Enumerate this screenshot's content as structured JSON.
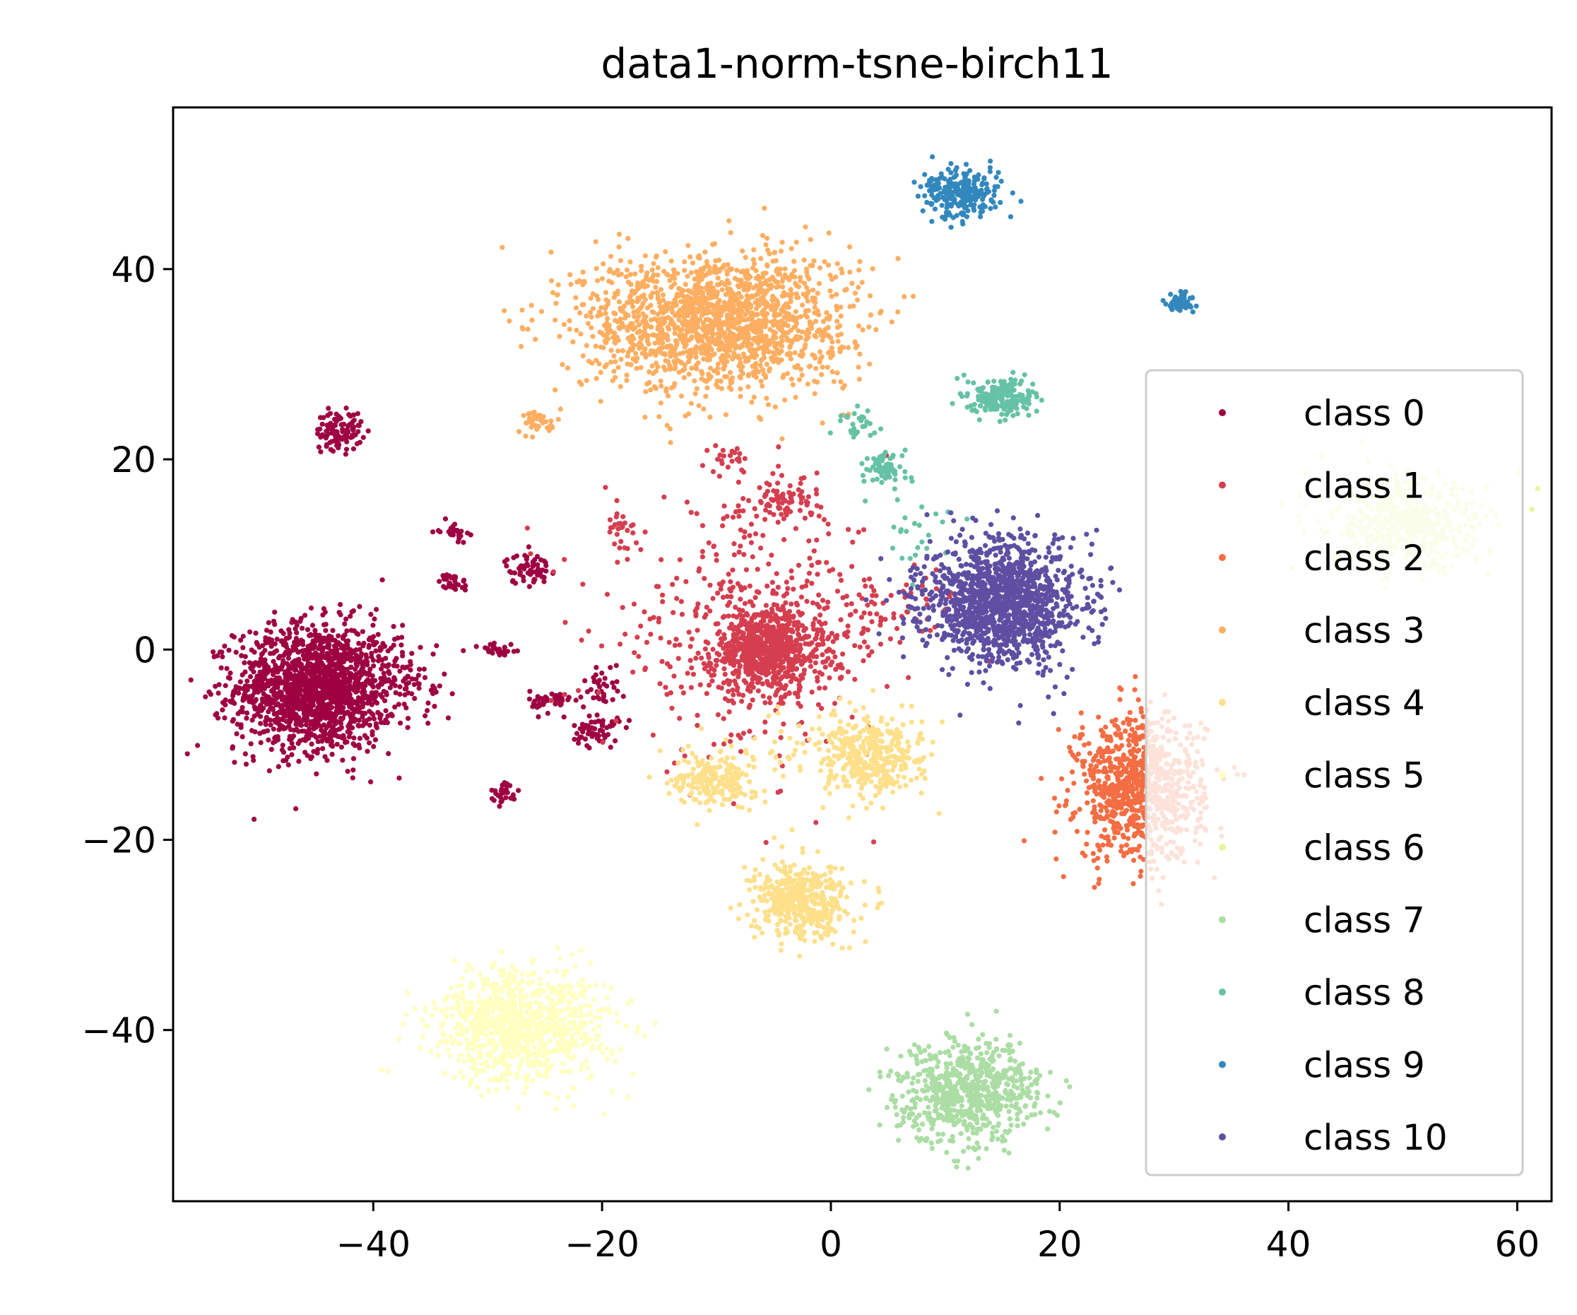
{
  "chart_data": {
    "type": "scatter",
    "title": "data1-norm-tsne-birch11",
    "xlabel": "",
    "ylabel": "",
    "xlim": [
      -57.5,
      63
    ],
    "ylim": [
      -58,
      57
    ],
    "xticks": [
      -40,
      -20,
      0,
      20,
      40,
      60
    ],
    "yticks": [
      -40,
      -20,
      0,
      20,
      40
    ],
    "xtick_labels": [
      "−40",
      "−20",
      "0",
      "20",
      "40",
      "60"
    ],
    "ytick_labels": [
      "−40",
      "−20",
      "0",
      "20",
      "40"
    ],
    "grid": false,
    "legend_position": "center-right",
    "series": [
      {
        "name": "class 0",
        "color": "#9e0142",
        "clusters": [
          {
            "x": -45,
            "y": -4,
            "sx": 3.5,
            "sy": 3.3,
            "n": 1600
          },
          {
            "x": -43,
            "y": 23,
            "sx": 1.0,
            "sy": 1.0,
            "n": 110
          },
          {
            "x": -33,
            "y": 12.5,
            "sx": 0.6,
            "sy": 0.5,
            "n": 30
          },
          {
            "x": -33,
            "y": 7,
            "sx": 0.6,
            "sy": 0.5,
            "n": 30
          },
          {
            "x": -26.5,
            "y": 8.5,
            "sx": 1.0,
            "sy": 0.8,
            "n": 60
          },
          {
            "x": -29,
            "y": 0,
            "sx": 1.0,
            "sy": 0.5,
            "n": 25
          },
          {
            "x": -24.5,
            "y": -5.5,
            "sx": 0.9,
            "sy": 0.6,
            "n": 45
          },
          {
            "x": -20.5,
            "y": -8.5,
            "sx": 1.0,
            "sy": 0.9,
            "n": 60
          },
          {
            "x": -20,
            "y": -4,
            "sx": 0.8,
            "sy": 1.2,
            "n": 35
          },
          {
            "x": -28.5,
            "y": -15,
            "sx": 0.6,
            "sy": 0.6,
            "n": 30
          },
          {
            "x": -37,
            "y": -3,
            "sx": 2.0,
            "sy": 2.5,
            "n": 50
          }
        ]
      },
      {
        "name": "class 1",
        "color": "#d53e4f",
        "clusters": [
          {
            "x": -5.5,
            "y": 0,
            "sx": 2.5,
            "sy": 2.3,
            "n": 700
          },
          {
            "x": -7,
            "y": 2,
            "sx": 6.5,
            "sy": 6.5,
            "n": 420
          },
          {
            "x": -4,
            "y": 15.5,
            "sx": 1.2,
            "sy": 1.0,
            "n": 80
          },
          {
            "x": -9,
            "y": 20,
            "sx": 0.8,
            "sy": 0.8,
            "n": 25
          },
          {
            "x": -18.5,
            "y": 13,
            "sx": 0.7,
            "sy": 1.0,
            "n": 25
          },
          {
            "x": 6,
            "y": 4,
            "sx": 3.0,
            "sy": 2.5,
            "n": 60
          }
        ]
      },
      {
        "name": "class 2",
        "color": "#f46d43",
        "clusters": [
          {
            "x": 27,
            "y": -14.5,
            "sx": 2.8,
            "sy": 3.8,
            "n": 900
          }
        ]
      },
      {
        "name": "class 3",
        "color": "#fdae61",
        "clusters": [
          {
            "x": -10,
            "y": 34.5,
            "sx": 5.8,
            "sy": 3.6,
            "n": 1700
          },
          {
            "x": -25.5,
            "y": 24,
            "sx": 0.8,
            "sy": 0.6,
            "n": 40
          }
        ]
      },
      {
        "name": "class 4",
        "color": "#fee08b",
        "clusters": [
          {
            "x": -2.5,
            "y": -26.5,
            "sx": 2.1,
            "sy": 2.0,
            "n": 450
          },
          {
            "x": 3.5,
            "y": -11.5,
            "sx": 2.2,
            "sy": 2.0,
            "n": 350
          },
          {
            "x": -10,
            "y": -13.5,
            "sx": 1.8,
            "sy": 1.5,
            "n": 200
          },
          {
            "x": 0,
            "y": -10,
            "sx": 4.0,
            "sy": 1.8,
            "n": 60
          }
        ]
      },
      {
        "name": "class 5",
        "color": "#ffffbf",
        "clusters": [
          {
            "x": -27,
            "y": -39.5,
            "sx": 3.8,
            "sy": 3.0,
            "n": 900
          }
        ]
      },
      {
        "name": "class 6",
        "color": "#e6f598",
        "clusters": [
          {
            "x": 50.5,
            "y": 13,
            "sx": 3.5,
            "sy": 2.3,
            "n": 500
          }
        ]
      },
      {
        "name": "class 7",
        "color": "#abdda4",
        "clusters": [
          {
            "x": 12,
            "y": -46.5,
            "sx": 3.1,
            "sy": 2.6,
            "n": 700
          }
        ]
      },
      {
        "name": "class 8",
        "color": "#66c2a5",
        "clusters": [
          {
            "x": 15,
            "y": 26.5,
            "sx": 1.4,
            "sy": 1.0,
            "n": 200
          },
          {
            "x": 4.8,
            "y": 19,
            "sx": 0.9,
            "sy": 0.9,
            "n": 70
          },
          {
            "x": 2.5,
            "y": 24,
            "sx": 1.0,
            "sy": 0.7,
            "n": 30
          },
          {
            "x": 7.5,
            "y": 12,
            "sx": 1.5,
            "sy": 2.5,
            "n": 25
          }
        ]
      },
      {
        "name": "class 9",
        "color": "#3288bd",
        "clusters": [
          {
            "x": 11.5,
            "y": 48,
            "sx": 1.7,
            "sy": 1.3,
            "n": 250
          },
          {
            "x": 30.5,
            "y": 36.5,
            "sx": 0.6,
            "sy": 0.5,
            "n": 60
          }
        ]
      },
      {
        "name": "class 10",
        "color": "#5e4fa2",
        "clusters": [
          {
            "x": 15,
            "y": 5,
            "sx": 3.4,
            "sy": 3.2,
            "n": 1300
          }
        ]
      }
    ]
  }
}
